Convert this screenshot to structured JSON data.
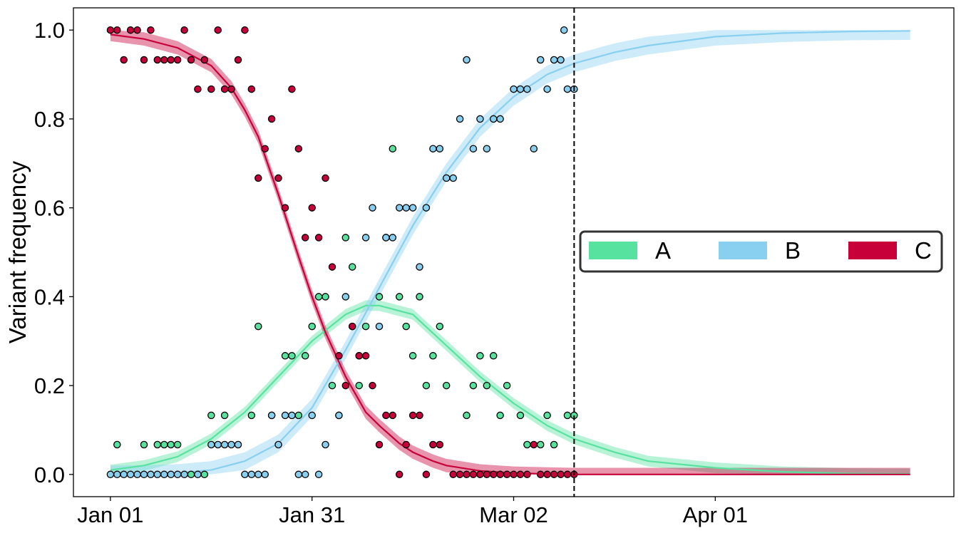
{
  "chart_data": {
    "type": "scatter",
    "title": "",
    "xlabel": "",
    "ylabel": "Variant frequency",
    "x_unit": "days since Jan 01",
    "xlim": [
      -5.5,
      125.5
    ],
    "ylim": [
      -0.05,
      1.05
    ],
    "x_ticks": [
      {
        "value": 0,
        "label": "Jan 01"
      },
      {
        "value": 30,
        "label": "Jan 31"
      },
      {
        "value": 60,
        "label": "Mar 02"
      },
      {
        "value": 90,
        "label": "Apr 01"
      }
    ],
    "y_ticks": [
      {
        "value": 0.0,
        "label": "0.0"
      },
      {
        "value": 0.2,
        "label": "0.2"
      },
      {
        "value": 0.4,
        "label": "0.4"
      },
      {
        "value": 0.6,
        "label": "0.6"
      },
      {
        "value": 0.8,
        "label": "0.8"
      },
      {
        "value": 1.0,
        "label": "1.0"
      }
    ],
    "vline": {
      "x": 69,
      "style": "dashed",
      "color": "#000000"
    },
    "legend": {
      "position": "center-right"
    },
    "series": [
      {
        "name": "A",
        "color": "#57e39f",
        "fit": {
          "x": [
            0,
            5,
            10,
            15,
            20,
            25,
            30,
            35,
            38,
            40,
            45,
            50,
            55,
            60,
            65,
            69,
            75,
            80,
            90,
            100,
            110,
            119
          ],
          "y": [
            0.01,
            0.02,
            0.04,
            0.08,
            0.14,
            0.22,
            0.3,
            0.36,
            0.38,
            0.38,
            0.36,
            0.29,
            0.22,
            0.16,
            0.11,
            0.08,
            0.05,
            0.03,
            0.015,
            0.006,
            0.002,
            0.001
          ],
          "band": 0.012
        },
        "points": [
          [
            1,
            0.067
          ],
          [
            5,
            0.067
          ],
          [
            7,
            0.067
          ],
          [
            8,
            0.067
          ],
          [
            9,
            0.067
          ],
          [
            10,
            0.067
          ],
          [
            12,
            0
          ],
          [
            14,
            0
          ],
          [
            15,
            0.133
          ],
          [
            17,
            0.133
          ],
          [
            21,
            0.133
          ],
          [
            22,
            0.333
          ],
          [
            24,
            0.133
          ],
          [
            26,
            0.267
          ],
          [
            27,
            0.267
          ],
          [
            28,
            0.133
          ],
          [
            29,
            0.267
          ],
          [
            30,
            0.333
          ],
          [
            31,
            0.4
          ],
          [
            32,
            0.4
          ],
          [
            33,
            0.2
          ],
          [
            34,
            0.133
          ],
          [
            35,
            0.533
          ],
          [
            36,
            0.467
          ],
          [
            37,
            0.2
          ],
          [
            38,
            0.333
          ],
          [
            40,
            0.4
          ],
          [
            41,
            0.533
          ],
          [
            42,
            0.733
          ],
          [
            43,
            0.4
          ],
          [
            44,
            0.333
          ],
          [
            45,
            0.267
          ],
          [
            46,
            0.4
          ],
          [
            47,
            0.2
          ],
          [
            48,
            0.267
          ],
          [
            49,
            0.333
          ],
          [
            50,
            0.2
          ],
          [
            53,
            0.133
          ],
          [
            54,
            0.2
          ],
          [
            55,
            0.267
          ],
          [
            56,
            0.2
          ],
          [
            57,
            0.267
          ],
          [
            58,
            0.133
          ],
          [
            59,
            0.2
          ],
          [
            61,
            0.133
          ],
          [
            62,
            0.067
          ],
          [
            64,
            0.067
          ],
          [
            65,
            0.133
          ],
          [
            66,
            0.067
          ],
          [
            68,
            0.133
          ],
          [
            69,
            0.133
          ]
        ]
      },
      {
        "name": "B",
        "color": "#89cff0",
        "fit": {
          "x": [
            0,
            5,
            10,
            15,
            20,
            25,
            30,
            35,
            40,
            45,
            50,
            55,
            60,
            65,
            69,
            75,
            80,
            90,
            100,
            110,
            119
          ],
          "y": [
            0.0,
            0.001,
            0.003,
            0.01,
            0.03,
            0.07,
            0.15,
            0.28,
            0.42,
            0.56,
            0.68,
            0.78,
            0.85,
            0.9,
            0.925,
            0.95,
            0.965,
            0.985,
            0.993,
            0.997,
            0.998
          ],
          "band": 0.02
        },
        "points": [
          [
            0,
            0
          ],
          [
            1,
            0
          ],
          [
            2,
            0
          ],
          [
            3,
            0
          ],
          [
            4,
            0
          ],
          [
            5,
            0
          ],
          [
            6,
            0
          ],
          [
            7,
            0
          ],
          [
            8,
            0
          ],
          [
            9,
            0
          ],
          [
            10,
            0
          ],
          [
            11,
            0
          ],
          [
            13,
            0
          ],
          [
            15,
            0.067
          ],
          [
            16,
            0.067
          ],
          [
            17,
            0.067
          ],
          [
            18,
            0.067
          ],
          [
            19,
            0.067
          ],
          [
            20,
            0
          ],
          [
            21,
            0
          ],
          [
            22,
            0
          ],
          [
            23,
            0
          ],
          [
            24,
            0.133
          ],
          [
            25,
            0.067
          ],
          [
            26,
            0.133
          ],
          [
            27,
            0.133
          ],
          [
            28,
            0
          ],
          [
            29,
            0
          ],
          [
            30,
            0.133
          ],
          [
            31,
            0
          ],
          [
            32,
            0.067
          ],
          [
            34,
            0.133
          ],
          [
            35,
            0.4
          ],
          [
            36,
            0.333
          ],
          [
            37,
            0.267
          ],
          [
            38,
            0.533
          ],
          [
            39,
            0.6
          ],
          [
            40,
            0.333
          ],
          [
            41,
            0.533
          ],
          [
            42,
            0.533
          ],
          [
            43,
            0.6
          ],
          [
            44,
            0.6
          ],
          [
            45,
            0.6
          ],
          [
            46,
            0.467
          ],
          [
            47,
            0.6
          ],
          [
            48,
            0.733
          ],
          [
            49,
            0.733
          ],
          [
            50,
            0.667
          ],
          [
            51,
            0.667
          ],
          [
            52,
            0.8
          ],
          [
            53,
            0.933
          ],
          [
            54,
            0.733
          ],
          [
            55,
            0.8
          ],
          [
            56,
            0.733
          ],
          [
            57,
            0.8
          ],
          [
            58,
            0.8
          ],
          [
            60,
            0.867
          ],
          [
            61,
            0.867
          ],
          [
            62,
            0.867
          ],
          [
            63,
            0.733
          ],
          [
            64,
            0.933
          ],
          [
            65,
            0.867
          ],
          [
            66,
            0.933
          ],
          [
            67,
            0.933
          ],
          [
            68,
            0.867
          ],
          [
            69,
            0.867
          ],
          [
            67.5,
            1.0
          ]
        ]
      },
      {
        "name": "C",
        "color": "#c8003a",
        "fit": {
          "x": [
            0,
            5,
            10,
            15,
            18,
            20,
            22,
            25,
            28,
            30,
            32,
            35,
            38,
            40,
            43,
            45,
            48,
            50,
            55,
            60,
            65,
            69,
            80,
            100,
            119
          ],
          "y": [
            0.99,
            0.98,
            0.96,
            0.92,
            0.87,
            0.82,
            0.76,
            0.63,
            0.49,
            0.4,
            0.32,
            0.22,
            0.14,
            0.11,
            0.07,
            0.05,
            0.03,
            0.02,
            0.008,
            0.003,
            0.001,
            0.0,
            0.0,
            0.0,
            0.0
          ],
          "band": 0.015
        },
        "points": [
          [
            0,
            1.0
          ],
          [
            1,
            1.0
          ],
          [
            2,
            0.933
          ],
          [
            3,
            1.0
          ],
          [
            4,
            1.0
          ],
          [
            5,
            0.933
          ],
          [
            6,
            1.0
          ],
          [
            7,
            0.933
          ],
          [
            8,
            0.933
          ],
          [
            9,
            0.933
          ],
          [
            10,
            0.933
          ],
          [
            11,
            1.0
          ],
          [
            12,
            0.933
          ],
          [
            13,
            0.867
          ],
          [
            14,
            0.933
          ],
          [
            15,
            0.867
          ],
          [
            16,
            1.0
          ],
          [
            17,
            0.867
          ],
          [
            18,
            0.867
          ],
          [
            19,
            0.933
          ],
          [
            20,
            1.0
          ],
          [
            21,
            0.867
          ],
          [
            22,
            0.667
          ],
          [
            23,
            0.733
          ],
          [
            24,
            0.8
          ],
          [
            25,
            0.667
          ],
          [
            26,
            0.6
          ],
          [
            27,
            0.867
          ],
          [
            28,
            0.733
          ],
          [
            29,
            0.533
          ],
          [
            30,
            0.6
          ],
          [
            31,
            0.533
          ],
          [
            32,
            0.667
          ],
          [
            33,
            0.467
          ],
          [
            34,
            0.267
          ],
          [
            35,
            0.2
          ],
          [
            36,
            0.333
          ],
          [
            37,
            0.267
          ],
          [
            38,
            0.267
          ],
          [
            39,
            0.2
          ],
          [
            40,
            0.067
          ],
          [
            41,
            0.133
          ],
          [
            42,
            0.133
          ],
          [
            43,
            0
          ],
          [
            44,
            0.067
          ],
          [
            45,
            0.133
          ],
          [
            46,
            0.133
          ],
          [
            47,
            0
          ],
          [
            48,
            0.067
          ],
          [
            49,
            0.067
          ],
          [
            51,
            0
          ],
          [
            52,
            0
          ],
          [
            53,
            0
          ],
          [
            54,
            0
          ],
          [
            55,
            0
          ],
          [
            56,
            0
          ],
          [
            57,
            0
          ],
          [
            58,
            0
          ],
          [
            59,
            0
          ],
          [
            60,
            0
          ],
          [
            61,
            0
          ],
          [
            62,
            0
          ],
          [
            63,
            0.067
          ],
          [
            64,
            0
          ],
          [
            65,
            0
          ],
          [
            66,
            0
          ],
          [
            67,
            0
          ],
          [
            68,
            0
          ],
          [
            69,
            0
          ]
        ]
      }
    ]
  }
}
